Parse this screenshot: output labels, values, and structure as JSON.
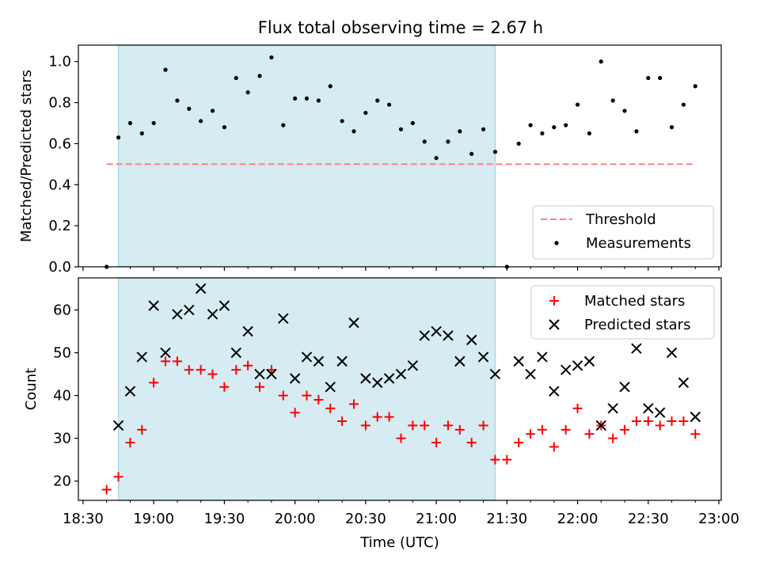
{
  "title": "Flux total observing time = 2.67 h",
  "colors": {
    "threshold": "#ff8080",
    "measurement": "#000000",
    "matched": "#ff0000",
    "predicted": "#000000",
    "span": "#add8e6"
  },
  "chart_data": [
    {
      "type": "scatter",
      "ylabel": "Matched/Predicted stars",
      "ylim": [
        0,
        1.08
      ],
      "yticks": [
        "0.0",
        "0.2",
        "0.4",
        "0.6",
        "0.8",
        "1.0"
      ],
      "xlim": [
        "18:28",
        "23:01"
      ],
      "highlight_span": [
        "18:45",
        "21:25"
      ],
      "threshold": 0.5,
      "legend": {
        "placement": "lower right",
        "entries": [
          "Threshold",
          "Measurements"
        ]
      },
      "series": [
        {
          "name": "Measurements",
          "marker": "dot",
          "x": [
            "18:40",
            "18:45",
            "18:50",
            "18:55",
            "19:00",
            "19:05",
            "19:10",
            "19:15",
            "19:20",
            "19:25",
            "19:30",
            "19:35",
            "19:40",
            "19:45",
            "19:50",
            "19:55",
            "20:00",
            "20:05",
            "20:10",
            "20:15",
            "20:20",
            "20:25",
            "20:30",
            "20:35",
            "20:40",
            "20:45",
            "20:50",
            "20:55",
            "21:00",
            "21:05",
            "21:10",
            "21:15",
            "21:20",
            "21:25",
            "21:30",
            "21:35",
            "21:40",
            "21:45",
            "21:50",
            "21:55",
            "22:00",
            "22:05",
            "22:10",
            "22:15",
            "22:20",
            "22:25",
            "22:30",
            "22:35",
            "22:40",
            "22:45",
            "22:50"
          ],
          "y": [
            0.0,
            0.63,
            0.7,
            0.65,
            0.7,
            0.96,
            0.81,
            0.77,
            0.71,
            0.76,
            0.68,
            0.92,
            0.85,
            0.93,
            1.02,
            0.69,
            0.82,
            0.82,
            0.81,
            0.88,
            0.71,
            0.66,
            0.75,
            0.81,
            0.79,
            0.67,
            0.7,
            0.61,
            0.53,
            0.61,
            0.66,
            0.55,
            0.67,
            0.56,
            0.0,
            0.6,
            0.69,
            0.65,
            0.68,
            0.69,
            0.79,
            0.65,
            1.0,
            0.81,
            0.76,
            0.66,
            0.92,
            0.92,
            0.68,
            0.79,
            0.88
          ]
        }
      ]
    },
    {
      "type": "scatter",
      "xlabel": "Time (UTC)",
      "ylabel": "Count",
      "ylim": [
        15.5,
        67.5
      ],
      "yticks": [
        "20",
        "30",
        "40",
        "50",
        "60"
      ],
      "xlim": [
        "18:28",
        "23:01"
      ],
      "xticks": [
        "18:30",
        "19:00",
        "19:30",
        "20:00",
        "20:30",
        "21:00",
        "21:30",
        "22:00",
        "22:30",
        "23:00"
      ],
      "highlight_span": [
        "18:45",
        "21:25"
      ],
      "legend": {
        "placement": "upper right",
        "entries": [
          "Matched stars",
          "Predicted stars"
        ]
      },
      "series": [
        {
          "name": "Matched stars",
          "marker": "plus",
          "x": [
            "18:40",
            "18:45",
            "18:50",
            "18:55",
            "19:00",
            "19:05",
            "19:10",
            "19:15",
            "19:20",
            "19:25",
            "19:30",
            "19:35",
            "19:40",
            "19:45",
            "19:50",
            "19:55",
            "20:00",
            "20:05",
            "20:10",
            "20:15",
            "20:20",
            "20:25",
            "20:30",
            "20:35",
            "20:40",
            "20:45",
            "20:50",
            "20:55",
            "21:00",
            "21:05",
            "21:10",
            "21:15",
            "21:20",
            "21:25",
            "21:30",
            "21:35",
            "21:40",
            "21:45",
            "21:50",
            "21:55",
            "22:00",
            "22:05",
            "22:10",
            "22:15",
            "22:20",
            "22:25",
            "22:30",
            "22:35",
            "22:40",
            "22:45",
            "22:50"
          ],
          "y": [
            18,
            21,
            29,
            32,
            43,
            48,
            48,
            46,
            46,
            45,
            42,
            46,
            47,
            42,
            46,
            40,
            36,
            40,
            39,
            37,
            34,
            38,
            33,
            35,
            35,
            30,
            33,
            33,
            29,
            33,
            32,
            29,
            33,
            25,
            25,
            29,
            31,
            32,
            28,
            32,
            37,
            31,
            33,
            30,
            32,
            34,
            34,
            33,
            34,
            34,
            31
          ]
        },
        {
          "name": "Predicted stars",
          "marker": "x",
          "x": [
            "18:45",
            "18:50",
            "18:55",
            "19:00",
            "19:05",
            "19:10",
            "19:15",
            "19:20",
            "19:25",
            "19:30",
            "19:35",
            "19:40",
            "19:45",
            "19:50",
            "19:55",
            "20:00",
            "20:05",
            "20:10",
            "20:15",
            "20:20",
            "20:25",
            "20:30",
            "20:35",
            "20:40",
            "20:45",
            "20:50",
            "20:55",
            "21:00",
            "21:05",
            "21:10",
            "21:15",
            "21:20",
            "21:25",
            "21:35",
            "21:40",
            "21:45",
            "21:50",
            "21:55",
            "22:00",
            "22:05",
            "22:10",
            "22:15",
            "22:20",
            "22:25",
            "22:30",
            "22:35",
            "22:40",
            "22:45",
            "22:50"
          ],
          "y": [
            33,
            41,
            49,
            61,
            50,
            59,
            60,
            65,
            59,
            61,
            50,
            55,
            45,
            45,
            58,
            44,
            49,
            48,
            42,
            48,
            57,
            44,
            43,
            44,
            45,
            47,
            54,
            55,
            54,
            48,
            53,
            49,
            45,
            48,
            45,
            49,
            41,
            46,
            47,
            48,
            33,
            37,
            42,
            51,
            37,
            36,
            50,
            43,
            35
          ]
        }
      ]
    }
  ]
}
